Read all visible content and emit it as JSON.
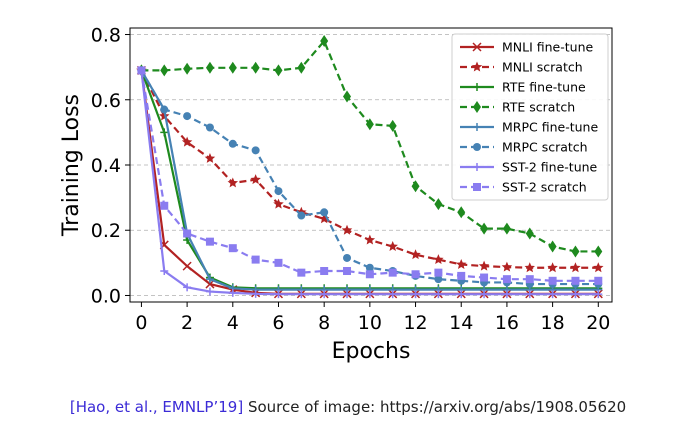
{
  "chart_data": {
    "type": "line",
    "xlabel": "Epochs",
    "ylabel": "Training Loss",
    "xlim": [
      -0.5,
      20.6
    ],
    "ylim": [
      -0.02,
      0.82
    ],
    "x_ticks": [
      "0",
      "2",
      "4",
      "6",
      "8",
      "10",
      "12",
      "14",
      "16",
      "18",
      "20"
    ],
    "y_ticks": [
      "0.0",
      "0.2",
      "0.4",
      "0.6",
      "0.8"
    ],
    "x_tick_values": [
      0,
      2,
      4,
      6,
      8,
      10,
      12,
      14,
      16,
      18,
      20
    ],
    "y_tick_values": [
      0.0,
      0.2,
      0.4,
      0.6,
      0.8
    ],
    "grid": "horizontal dashed",
    "legend_position": "top-right",
    "x": [
      0,
      1,
      2,
      3,
      4,
      5,
      6,
      7,
      8,
      9,
      10,
      11,
      12,
      13,
      14,
      15,
      16,
      17,
      18,
      19,
      20
    ],
    "series": [
      {
        "name": "MNLI fine-tune",
        "color": "#b22222",
        "style": "solid",
        "marker": "x",
        "values": [
          0.69,
          0.155,
          0.09,
          0.035,
          0.018,
          0.008,
          0.005,
          0.005,
          0.005,
          0.005,
          0.005,
          0.005,
          0.005,
          0.005,
          0.005,
          0.005,
          0.005,
          0.005,
          0.005,
          0.005,
          0.005
        ]
      },
      {
        "name": "MNLI scratch",
        "color": "#b22222",
        "style": "dashed",
        "marker": "star",
        "values": [
          0.69,
          0.55,
          0.47,
          0.42,
          0.345,
          0.355,
          0.28,
          0.255,
          0.235,
          0.2,
          0.17,
          0.15,
          0.125,
          0.11,
          0.095,
          0.09,
          0.087,
          0.085,
          0.085,
          0.085,
          0.085
        ]
      },
      {
        "name": "RTE fine-tune",
        "color": "#1e8a1e",
        "style": "solid",
        "marker": "+",
        "values": [
          0.69,
          0.5,
          0.17,
          0.055,
          0.025,
          0.022,
          0.022,
          0.022,
          0.022,
          0.022,
          0.022,
          0.022,
          0.022,
          0.022,
          0.022,
          0.022,
          0.022,
          0.022,
          0.022,
          0.022,
          0.022
        ]
      },
      {
        "name": "RTE scratch",
        "color": "#1e8a1e",
        "style": "dashed",
        "marker": "diamond",
        "values": [
          0.69,
          0.69,
          0.695,
          0.698,
          0.698,
          0.698,
          0.69,
          0.698,
          0.78,
          0.61,
          0.525,
          0.52,
          0.335,
          0.28,
          0.255,
          0.205,
          0.205,
          0.19,
          0.15,
          0.135,
          0.135
        ]
      },
      {
        "name": "MRPC fine-tune",
        "color": "#4682b4",
        "style": "solid",
        "marker": "+",
        "values": [
          0.69,
          0.57,
          0.19,
          0.05,
          0.022,
          0.018,
          0.018,
          0.018,
          0.018,
          0.018,
          0.018,
          0.018,
          0.018,
          0.018,
          0.018,
          0.018,
          0.018,
          0.018,
          0.018,
          0.018,
          0.018
        ]
      },
      {
        "name": "MRPC scratch",
        "color": "#4682b4",
        "style": "dashed",
        "marker": "circle",
        "values": [
          0.69,
          0.57,
          0.55,
          0.515,
          0.465,
          0.445,
          0.32,
          0.245,
          0.255,
          0.115,
          0.085,
          0.075,
          0.06,
          0.05,
          0.045,
          0.04,
          0.04,
          0.035,
          0.035,
          0.035,
          0.035
        ]
      },
      {
        "name": "SST-2 fine-tune",
        "color": "#8a7cf0",
        "style": "solid",
        "marker": "+",
        "values": [
          0.69,
          0.075,
          0.025,
          0.012,
          0.008,
          0.005,
          0.004,
          0.004,
          0.004,
          0.004,
          0.004,
          0.004,
          0.004,
          0.004,
          0.004,
          0.004,
          0.004,
          0.004,
          0.004,
          0.004,
          0.004
        ]
      },
      {
        "name": "SST-2 scratch",
        "color": "#8a7cf0",
        "style": "dashed",
        "marker": "square",
        "values": [
          0.69,
          0.275,
          0.19,
          0.165,
          0.145,
          0.11,
          0.1,
          0.07,
          0.075,
          0.075,
          0.065,
          0.07,
          0.065,
          0.07,
          0.06,
          0.055,
          0.05,
          0.05,
          0.045,
          0.045,
          0.045
        ]
      }
    ]
  },
  "caption": {
    "citation": "[Hao, et al., EMNLP’19]",
    "source": "Source of image: https://arxiv.org/abs/1908.05620"
  }
}
